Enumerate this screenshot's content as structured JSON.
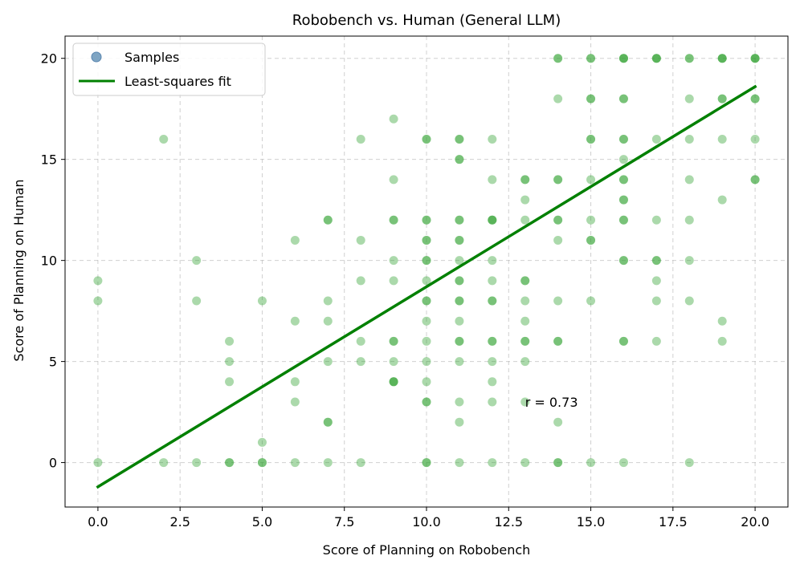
{
  "chart_data": {
    "type": "scatter",
    "title": "Robobench vs. Human (General LLM)",
    "xlabel": "Score of Planning on Robobench",
    "ylabel": "Score of Planning on Human",
    "xlim": [
      -1,
      21
    ],
    "ylim": [
      -2.2,
      21.1
    ],
    "xticks": [
      "0.0",
      "2.5",
      "5.0",
      "7.5",
      "10.0",
      "12.5",
      "15.0",
      "17.5",
      "20.0"
    ],
    "yticks": [
      "0",
      "5",
      "10",
      "15",
      "20"
    ],
    "grid": true,
    "legend_position": "upper-left",
    "annotation": "r = 0.73",
    "annotation_at": [
      13,
      3
    ],
    "series": [
      {
        "name": "Samples",
        "kind": "scatter",
        "color": "#2ca02c",
        "opacity": 0.4,
        "points": [
          [
            0,
            9
          ],
          [
            0,
            8
          ],
          [
            0,
            0
          ],
          [
            2,
            16
          ],
          [
            2,
            0
          ],
          [
            3,
            10
          ],
          [
            3,
            8
          ],
          [
            3,
            0
          ],
          [
            4,
            6
          ],
          [
            4,
            5
          ],
          [
            4,
            4
          ],
          [
            4,
            0
          ],
          [
            4,
            0
          ],
          [
            5,
            8
          ],
          [
            5,
            1
          ],
          [
            5,
            0
          ],
          [
            5,
            0
          ],
          [
            6,
            11
          ],
          [
            6,
            7
          ],
          [
            6,
            4
          ],
          [
            6,
            3
          ],
          [
            6,
            0
          ],
          [
            7,
            12
          ],
          [
            7,
            12
          ],
          [
            7,
            8
          ],
          [
            7,
            7
          ],
          [
            7,
            5
          ],
          [
            7,
            2
          ],
          [
            7,
            2
          ],
          [
            7,
            0
          ],
          [
            8,
            16
          ],
          [
            8,
            11
          ],
          [
            8,
            9
          ],
          [
            8,
            6
          ],
          [
            8,
            5
          ],
          [
            8,
            0
          ],
          [
            9,
            17
          ],
          [
            9,
            14
          ],
          [
            9,
            12
          ],
          [
            9,
            12
          ],
          [
            9,
            10
          ],
          [
            9,
            9
          ],
          [
            9,
            6
          ],
          [
            9,
            6
          ],
          [
            9,
            5
          ],
          [
            9,
            4
          ],
          [
            9,
            4
          ],
          [
            9,
            4
          ],
          [
            10,
            16
          ],
          [
            10,
            16
          ],
          [
            10,
            12
          ],
          [
            10,
            12
          ],
          [
            10,
            11
          ],
          [
            10,
            11
          ],
          [
            10,
            10
          ],
          [
            10,
            10
          ],
          [
            10,
            9
          ],
          [
            10,
            8
          ],
          [
            10,
            8
          ],
          [
            10,
            7
          ],
          [
            10,
            6
          ],
          [
            10,
            5
          ],
          [
            10,
            4
          ],
          [
            10,
            3
          ],
          [
            10,
            3
          ],
          [
            10,
            0
          ],
          [
            10,
            0
          ],
          [
            11,
            16
          ],
          [
            11,
            16
          ],
          [
            11,
            15
          ],
          [
            11,
            15
          ],
          [
            11,
            12
          ],
          [
            11,
            12
          ],
          [
            11,
            11
          ],
          [
            11,
            11
          ],
          [
            11,
            10
          ],
          [
            11,
            9
          ],
          [
            11,
            9
          ],
          [
            11,
            8
          ],
          [
            11,
            8
          ],
          [
            11,
            7
          ],
          [
            11,
            6
          ],
          [
            11,
            6
          ],
          [
            11,
            5
          ],
          [
            11,
            3
          ],
          [
            11,
            2
          ],
          [
            11,
            0
          ],
          [
            12,
            16
          ],
          [
            12,
            14
          ],
          [
            12,
            12
          ],
          [
            12,
            12
          ],
          [
            12,
            12
          ],
          [
            12,
            10
          ],
          [
            12,
            9
          ],
          [
            12,
            8
          ],
          [
            12,
            8
          ],
          [
            12,
            6
          ],
          [
            12,
            6
          ],
          [
            12,
            5
          ],
          [
            12,
            4
          ],
          [
            12,
            3
          ],
          [
            12,
            0
          ],
          [
            13,
            14
          ],
          [
            13,
            14
          ],
          [
            13,
            13
          ],
          [
            13,
            12
          ],
          [
            13,
            9
          ],
          [
            13,
            9
          ],
          [
            13,
            8
          ],
          [
            13,
            7
          ],
          [
            13,
            6
          ],
          [
            13,
            6
          ],
          [
            13,
            5
          ],
          [
            13,
            3
          ],
          [
            13,
            0
          ],
          [
            14,
            20
          ],
          [
            14,
            20
          ],
          [
            14,
            18
          ],
          [
            14,
            14
          ],
          [
            14,
            14
          ],
          [
            14,
            12
          ],
          [
            14,
            12
          ],
          [
            14,
            11
          ],
          [
            14,
            8
          ],
          [
            14,
            6
          ],
          [
            14,
            6
          ],
          [
            14,
            2
          ],
          [
            14,
            0
          ],
          [
            14,
            0
          ],
          [
            15,
            20
          ],
          [
            15,
            20
          ],
          [
            15,
            18
          ],
          [
            15,
            18
          ],
          [
            15,
            16
          ],
          [
            15,
            16
          ],
          [
            15,
            14
          ],
          [
            15,
            12
          ],
          [
            15,
            11
          ],
          [
            15,
            11
          ],
          [
            15,
            8
          ],
          [
            15,
            0
          ],
          [
            16,
            20
          ],
          [
            16,
            20
          ],
          [
            16,
            20
          ],
          [
            16,
            18
          ],
          [
            16,
            18
          ],
          [
            16,
            16
          ],
          [
            16,
            16
          ],
          [
            16,
            15
          ],
          [
            16,
            14
          ],
          [
            16,
            14
          ],
          [
            16,
            13
          ],
          [
            16,
            13
          ],
          [
            16,
            12
          ],
          [
            16,
            12
          ],
          [
            16,
            10
          ],
          [
            16,
            10
          ],
          [
            16,
            6
          ],
          [
            16,
            6
          ],
          [
            16,
            0
          ],
          [
            17,
            20
          ],
          [
            17,
            20
          ],
          [
            17,
            20
          ],
          [
            17,
            16
          ],
          [
            17,
            12
          ],
          [
            17,
            10
          ],
          [
            17,
            10
          ],
          [
            17,
            9
          ],
          [
            17,
            8
          ],
          [
            17,
            6
          ],
          [
            18,
            20
          ],
          [
            18,
            20
          ],
          [
            18,
            18
          ],
          [
            18,
            16
          ],
          [
            18,
            14
          ],
          [
            18,
            12
          ],
          [
            18,
            10
          ],
          [
            18,
            8
          ],
          [
            18,
            0
          ],
          [
            19,
            20
          ],
          [
            19,
            20
          ],
          [
            19,
            20
          ],
          [
            19,
            18
          ],
          [
            19,
            18
          ],
          [
            19,
            16
          ],
          [
            19,
            13
          ],
          [
            19,
            7
          ],
          [
            19,
            6
          ],
          [
            20,
            20
          ],
          [
            20,
            20
          ],
          [
            20,
            20
          ],
          [
            20,
            18
          ],
          [
            20,
            18
          ],
          [
            20,
            16
          ],
          [
            20,
            14
          ],
          [
            20,
            14
          ]
        ]
      },
      {
        "name": "Least-squares fit",
        "kind": "line",
        "color": "#008000",
        "x": [
          0,
          20
        ],
        "y": [
          -1.2,
          18.6
        ]
      }
    ]
  }
}
